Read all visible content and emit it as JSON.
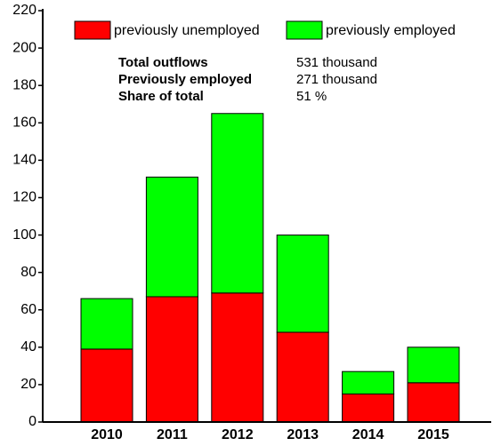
{
  "chart_data": {
    "type": "stacked-bar",
    "categories": [
      "2010",
      "2011",
      "2012",
      "2013",
      "2014",
      "2015"
    ],
    "series": [
      {
        "name": "previously unemployed",
        "color": "#ff0000",
        "values": [
          39,
          67,
          69,
          48,
          15,
          21
        ]
      },
      {
        "name": "previously employed",
        "color": "#00ff00",
        "values": [
          27,
          64,
          96,
          52,
          12,
          19
        ]
      }
    ],
    "ylim": [
      0,
      220
    ],
    "yticks": [
      0,
      20,
      40,
      60,
      80,
      100,
      120,
      140,
      160,
      180,
      200,
      220
    ],
    "grid": false,
    "annotations": [
      {
        "label": "Total outflows",
        "value": "531 thousand"
      },
      {
        "label": "Previously employed",
        "value": "271 thousand"
      },
      {
        "label": "Share of total",
        "value": "51 %"
      }
    ]
  }
}
